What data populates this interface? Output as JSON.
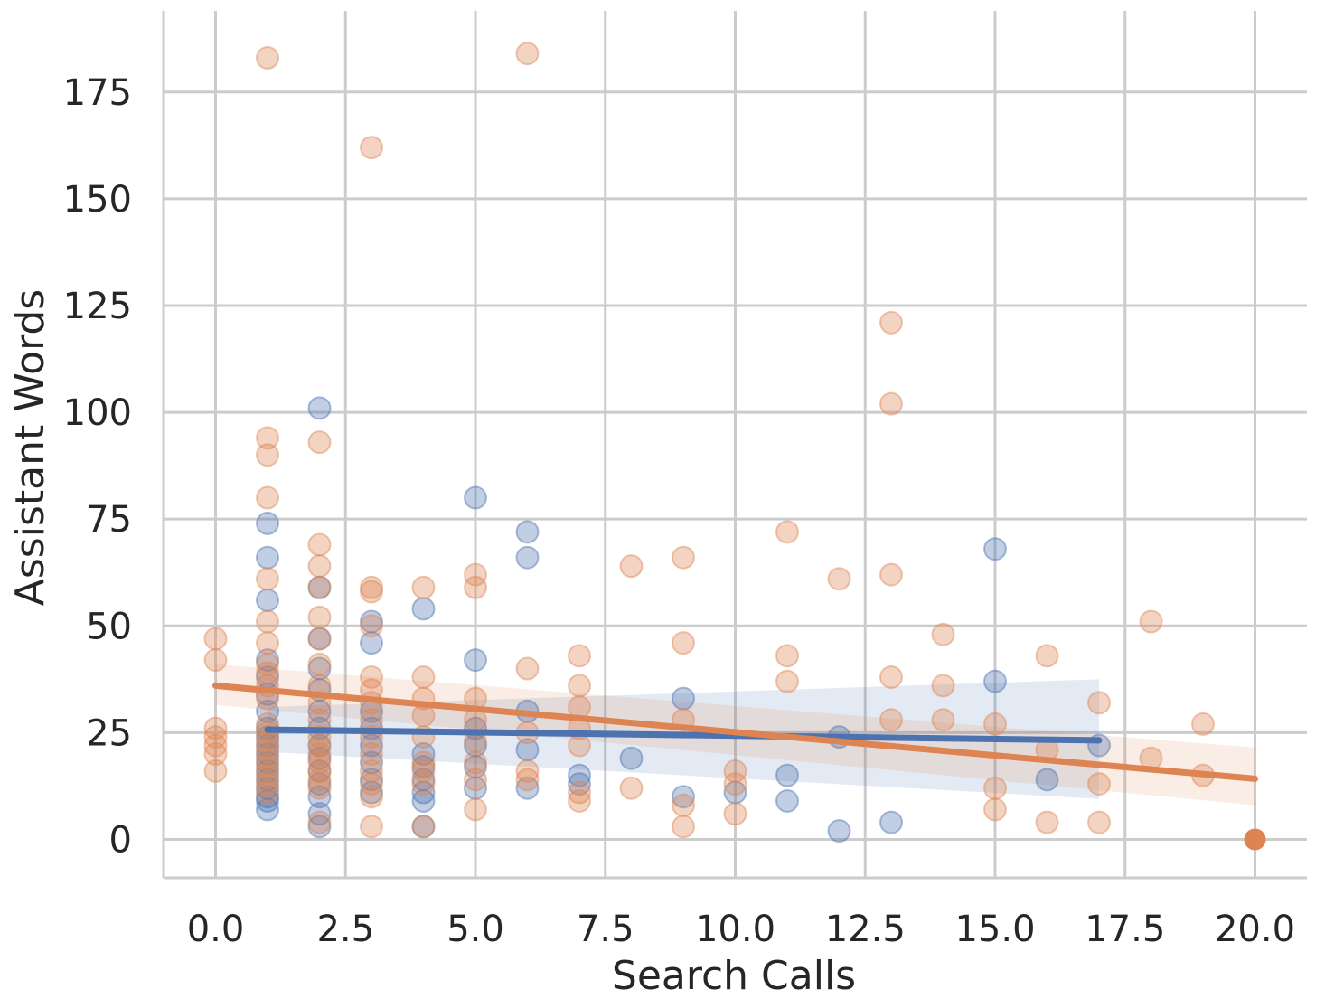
{
  "chart_data": {
    "type": "scatter",
    "title": "",
    "xlabel": "Search Calls",
    "ylabel": "Assistant Words",
    "xlim": [
      -1.0,
      21.0
    ],
    "ylim": [
      -9,
      194
    ],
    "x_ticks": [
      0.0,
      2.5,
      5.0,
      7.5,
      10.0,
      12.5,
      15.0,
      17.5,
      20.0
    ],
    "x_tick_labels": [
      "0.0",
      "2.5",
      "5.0",
      "7.5",
      "10.0",
      "12.5",
      "15.0",
      "17.5",
      "20.0"
    ],
    "y_ticks": [
      0,
      25,
      50,
      75,
      100,
      125,
      150,
      175
    ],
    "y_tick_labels": [
      "0",
      "25",
      "50",
      "75",
      "100",
      "125",
      "150",
      "175"
    ],
    "grid": true,
    "legend": "none",
    "series": [
      {
        "color": "#4c72b0",
        "points": [
          [
            1,
            7
          ],
          [
            1,
            9
          ],
          [
            1,
            10
          ],
          [
            1,
            12
          ],
          [
            1,
            14
          ],
          [
            1,
            16
          ],
          [
            1,
            18
          ],
          [
            1,
            20
          ],
          [
            1,
            22
          ],
          [
            1,
            24
          ],
          [
            1,
            26
          ],
          [
            1,
            30
          ],
          [
            1,
            34
          ],
          [
            1,
            38
          ],
          [
            1,
            42
          ],
          [
            1,
            56
          ],
          [
            1,
            66
          ],
          [
            1,
            74
          ],
          [
            2,
            3
          ],
          [
            2,
            6
          ],
          [
            2,
            10
          ],
          [
            2,
            13
          ],
          [
            2,
            16
          ],
          [
            2,
            19
          ],
          [
            2,
            22
          ],
          [
            2,
            26
          ],
          [
            2,
            30
          ],
          [
            2,
            35
          ],
          [
            2,
            40
          ],
          [
            2,
            47
          ],
          [
            2,
            59
          ],
          [
            2,
            101
          ],
          [
            3,
            11
          ],
          [
            3,
            14
          ],
          [
            3,
            18
          ],
          [
            3,
            22
          ],
          [
            3,
            26
          ],
          [
            3,
            30
          ],
          [
            3,
            46
          ],
          [
            3,
            51
          ],
          [
            4,
            3
          ],
          [
            4,
            9
          ],
          [
            4,
            11
          ],
          [
            4,
            14
          ],
          [
            4,
            17
          ],
          [
            4,
            20
          ],
          [
            4,
            54
          ],
          [
            5,
            12
          ],
          [
            5,
            17
          ],
          [
            5,
            22
          ],
          [
            5,
            26
          ],
          [
            5,
            42
          ],
          [
            5,
            80
          ],
          [
            6,
            12
          ],
          [
            6,
            21
          ],
          [
            6,
            30
          ],
          [
            6,
            66
          ],
          [
            6,
            72
          ],
          [
            7,
            13
          ],
          [
            7,
            15
          ],
          [
            8,
            19
          ],
          [
            9,
            10
          ],
          [
            9,
            33
          ],
          [
            10,
            11
          ],
          [
            11,
            9
          ],
          [
            11,
            15
          ],
          [
            12,
            2
          ],
          [
            12,
            24
          ],
          [
            13,
            4
          ],
          [
            15,
            37
          ],
          [
            15,
            68
          ],
          [
            16,
            14
          ],
          [
            17,
            22
          ]
        ],
        "fit": {
          "x_range": [
            1,
            17
          ],
          "y_start": 25.7,
          "y_end": 23.2,
          "ci_start": [
            20.5,
            31.0
          ],
          "ci_end": [
            9.5,
            37.5
          ]
        }
      },
      {
        "color": "#dd8452",
        "points": [
          [
            0,
            16
          ],
          [
            0,
            20
          ],
          [
            0,
            22
          ],
          [
            0,
            24
          ],
          [
            0,
            26
          ],
          [
            0,
            42
          ],
          [
            0,
            47
          ],
          [
            1,
            11
          ],
          [
            1,
            13
          ],
          [
            1,
            15
          ],
          [
            1,
            17
          ],
          [
            1,
            19
          ],
          [
            1,
            21
          ],
          [
            1,
            23
          ],
          [
            1,
            25
          ],
          [
            1,
            27
          ],
          [
            1,
            33
          ],
          [
            1,
            36
          ],
          [
            1,
            39
          ],
          [
            1,
            41
          ],
          [
            1,
            46
          ],
          [
            1,
            51
          ],
          [
            1,
            61
          ],
          [
            1,
            80
          ],
          [
            1,
            90
          ],
          [
            1,
            94
          ],
          [
            1,
            183
          ],
          [
            2,
            4
          ],
          [
            2,
            12
          ],
          [
            2,
            14
          ],
          [
            2,
            16
          ],
          [
            2,
            18
          ],
          [
            2,
            20
          ],
          [
            2,
            22
          ],
          [
            2,
            24
          ],
          [
            2,
            28
          ],
          [
            2,
            32
          ],
          [
            2,
            36
          ],
          [
            2,
            41
          ],
          [
            2,
            47
          ],
          [
            2,
            52
          ],
          [
            2,
            59
          ],
          [
            2,
            64
          ],
          [
            2,
            69
          ],
          [
            2,
            93
          ],
          [
            3,
            3
          ],
          [
            3,
            10
          ],
          [
            3,
            13
          ],
          [
            3,
            16
          ],
          [
            3,
            20
          ],
          [
            3,
            24
          ],
          [
            3,
            28
          ],
          [
            3,
            32
          ],
          [
            3,
            35
          ],
          [
            3,
            38
          ],
          [
            3,
            50
          ],
          [
            3,
            58
          ],
          [
            3,
            59
          ],
          [
            3,
            162
          ],
          [
            4,
            3
          ],
          [
            4,
            13
          ],
          [
            4,
            16
          ],
          [
            4,
            18
          ],
          [
            4,
            24
          ],
          [
            4,
            29
          ],
          [
            4,
            33
          ],
          [
            4,
            38
          ],
          [
            4,
            59
          ],
          [
            5,
            7
          ],
          [
            5,
            14
          ],
          [
            5,
            18
          ],
          [
            5,
            23
          ],
          [
            5,
            28
          ],
          [
            5,
            33
          ],
          [
            5,
            59
          ],
          [
            5,
            62
          ],
          [
            6,
            14
          ],
          [
            6,
            16
          ],
          [
            6,
            25
          ],
          [
            6,
            40
          ],
          [
            6,
            184
          ],
          [
            7,
            9
          ],
          [
            7,
            11
          ],
          [
            7,
            22
          ],
          [
            7,
            26
          ],
          [
            7,
            31
          ],
          [
            7,
            36
          ],
          [
            7,
            43
          ],
          [
            8,
            12
          ],
          [
            8,
            64
          ],
          [
            9,
            3
          ],
          [
            9,
            8
          ],
          [
            9,
            28
          ],
          [
            9,
            46
          ],
          [
            9,
            66
          ],
          [
            10,
            6
          ],
          [
            10,
            13
          ],
          [
            10,
            16
          ],
          [
            11,
            37
          ],
          [
            11,
            43
          ],
          [
            11,
            72
          ],
          [
            12,
            61
          ],
          [
            13,
            28
          ],
          [
            13,
            38
          ],
          [
            13,
            62
          ],
          [
            13,
            102
          ],
          [
            13,
            121
          ],
          [
            14,
            28
          ],
          [
            14,
            36
          ],
          [
            14,
            48
          ],
          [
            15,
            7
          ],
          [
            15,
            12
          ],
          [
            15,
            27
          ],
          [
            16,
            4
          ],
          [
            16,
            21
          ],
          [
            16,
            43
          ],
          [
            17,
            4
          ],
          [
            17,
            13
          ],
          [
            17,
            32
          ],
          [
            18,
            19
          ],
          [
            18,
            51
          ],
          [
            19,
            15
          ],
          [
            19,
            27
          ]
        ],
        "highlight_point": [
          20,
          0
        ],
        "fit": {
          "x_range": [
            0,
            20
          ],
          "y_start": 36.0,
          "y_end": 14.2,
          "ci_start": [
            31.5,
            41.0
          ],
          "ci_end": [
            8.0,
            21.5
          ]
        }
      }
    ]
  }
}
